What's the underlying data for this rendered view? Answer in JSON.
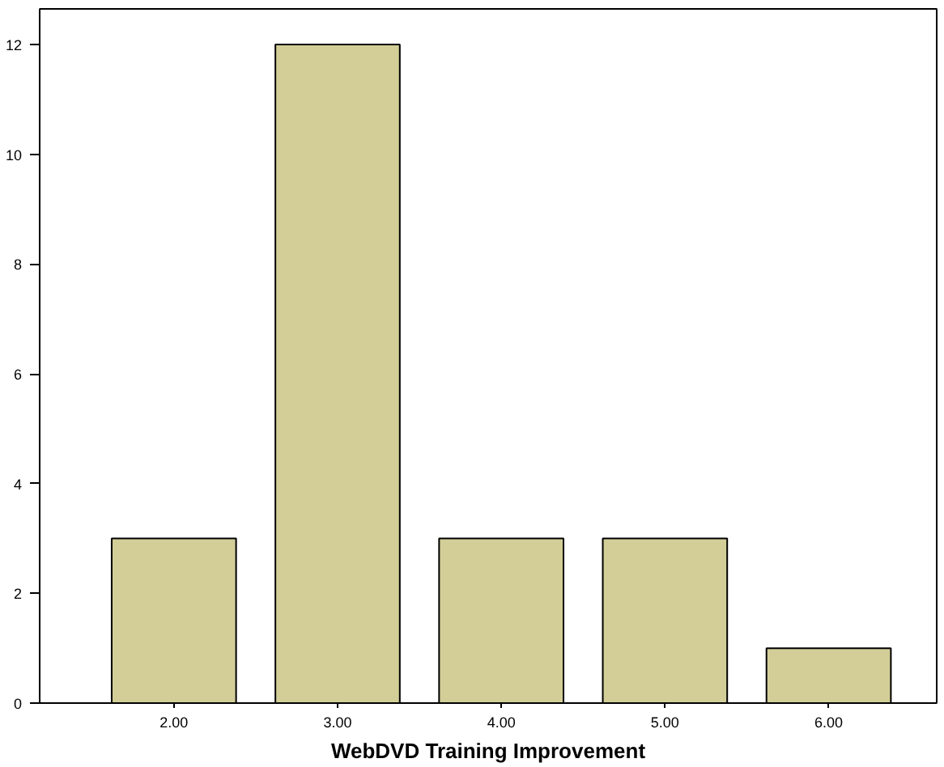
{
  "chart_data": {
    "type": "bar",
    "xlabel": "WebDVD Training Improvement",
    "categories": [
      "2.00",
      "3.00",
      "4.00",
      "5.00",
      "6.00"
    ],
    "values": [
      3,
      12,
      3,
      3,
      1
    ],
    "color": "#d3ce98",
    "ylim": [
      0,
      12.65
    ],
    "yticks": [
      0,
      2,
      4,
      6,
      8,
      10,
      12
    ],
    "grid": false
  }
}
